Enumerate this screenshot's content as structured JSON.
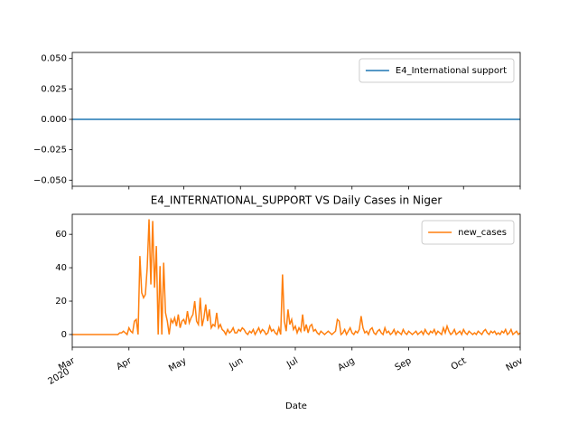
{
  "chart_data": [
    {
      "type": "line",
      "x": [
        0,
        245
      ],
      "series": [
        {
          "name": "E4_International support",
          "color": "#1f77b4",
          "values": [
            0,
            0
          ]
        }
      ],
      "xlim": [
        0,
        245
      ],
      "xticks": [
        0,
        31,
        61,
        92,
        122,
        153,
        184,
        214,
        245
      ],
      "ylim": [
        -0.055,
        0.055
      ],
      "yticks": [
        {
          "value": -0.05,
          "label": "−0.050"
        },
        {
          "value": -0.025,
          "label": "−0.025"
        },
        {
          "value": 0,
          "label": "0.000"
        },
        {
          "value": 0.025,
          "label": "0.025"
        },
        {
          "value": 0.05,
          "label": "0.050"
        }
      ],
      "legend": "upper right"
    },
    {
      "type": "line",
      "title": "E4_INTERNATIONAL_SUPPORT VS Daily Cases in Niger",
      "x_label": "Date",
      "series": [
        {
          "name": "new_cases",
          "color": "#ff7f0e",
          "values": [
            0,
            0,
            0,
            0,
            0,
            0,
            0,
            0,
            0,
            0,
            0,
            0,
            0,
            0,
            0,
            0,
            0,
            0,
            0,
            0,
            0,
            0,
            0,
            0,
            0,
            0,
            1,
            1,
            2,
            1,
            0,
            4,
            2,
            1,
            8,
            9,
            0,
            47,
            25,
            22,
            24,
            40,
            69,
            30,
            68,
            28,
            53,
            0,
            41,
            0,
            43,
            13,
            8,
            0,
            9,
            7,
            10,
            5,
            12,
            4,
            8,
            9,
            6,
            14,
            7,
            10,
            12,
            20,
            8,
            6,
            22,
            5,
            10,
            18,
            8,
            15,
            4,
            6,
            5,
            13,
            4,
            6,
            3,
            2,
            0,
            3,
            1,
            2,
            4,
            1,
            1,
            3,
            2,
            4,
            3,
            1,
            0,
            2,
            1,
            3,
            0,
            2,
            4,
            1,
            3,
            2,
            0,
            1,
            5,
            2,
            3,
            1,
            0,
            4,
            0,
            36,
            8,
            2,
            15,
            6,
            9,
            3,
            5,
            1,
            4,
            2,
            12,
            2,
            6,
            1,
            5,
            6,
            2,
            3,
            1,
            0,
            2,
            1,
            0,
            1,
            2,
            1,
            0,
            1,
            2,
            9,
            8,
            0,
            1,
            3,
            0,
            2,
            4,
            1,
            0,
            2,
            1,
            3,
            11,
            4,
            1,
            2,
            0,
            3,
            4,
            1,
            0,
            2,
            3,
            1,
            0,
            4,
            1,
            2,
            0,
            1,
            3,
            0,
            2,
            1,
            0,
            3,
            1,
            0,
            2,
            1,
            0,
            1,
            2,
            0,
            1,
            2,
            0,
            3,
            1,
            0,
            2,
            1,
            3,
            0,
            2,
            1,
            0,
            4,
            1,
            5,
            2,
            0,
            1,
            3,
            0,
            1,
            2,
            0,
            3,
            1,
            0,
            2,
            1,
            0,
            1,
            0,
            2,
            1,
            0,
            2,
            3,
            1,
            0,
            2,
            1,
            2,
            0,
            1,
            0,
            2,
            1,
            3,
            0,
            1,
            3,
            0,
            1,
            2,
            0,
            1
          ]
        }
      ],
      "xlim": [
        0,
        245
      ],
      "xticks": [
        {
          "value": 0,
          "label": "Mar",
          "sublabel": "2020"
        },
        {
          "value": 31,
          "label": "Apr"
        },
        {
          "value": 61,
          "label": "May"
        },
        {
          "value": 92,
          "label": "Jun"
        },
        {
          "value": 122,
          "label": "Jul"
        },
        {
          "value": 153,
          "label": "Aug"
        },
        {
          "value": 184,
          "label": "Sep"
        },
        {
          "value": 214,
          "label": "Oct"
        },
        {
          "value": 245,
          "label": "Nov"
        }
      ],
      "ylim": [
        -7.6,
        72
      ],
      "yticks": [
        0,
        20,
        40,
        60
      ],
      "legend": "upper right"
    }
  ]
}
